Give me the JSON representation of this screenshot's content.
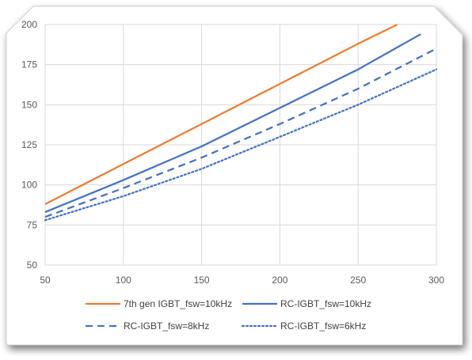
{
  "chart_data": {
    "type": "line",
    "title": "",
    "xlabel": "",
    "ylabel": "",
    "xlim": [
      50,
      300
    ],
    "ylim": [
      50,
      200
    ],
    "grid": true,
    "legend_position": "bottom",
    "x_ticks": [
      "50",
      "100",
      "150",
      "200",
      "250",
      "300"
    ],
    "y_ticks": [
      "50",
      "75",
      "100",
      "125",
      "150",
      "175",
      "200"
    ],
    "series": [
      {
        "name": "7th gen IGBT_fsw=10kHz",
        "color": "#ED7D31",
        "line_style": "solid",
        "x": [
          50,
          100,
          150,
          200,
          250,
          275
        ],
        "y": [
          88,
          113,
          138,
          163,
          188,
          200
        ]
      },
      {
        "name": "RC-IGBT_fsw=10kHz",
        "color": "#4472C4",
        "line_style": "solid",
        "x": [
          50,
          100,
          150,
          200,
          250,
          290
        ],
        "y": [
          83,
          103,
          124,
          148,
          172,
          194
        ]
      },
      {
        "name": "RC-IGBT_fsw=8kHz",
        "color": "#4472C4",
        "line_style": "dashed",
        "x": [
          50,
          100,
          150,
          200,
          250,
          300
        ],
        "y": [
          80,
          98,
          117,
          138,
          160,
          185
        ]
      },
      {
        "name": "RC-IGBT_fsw=6kHz",
        "color": "#4472C4",
        "line_style": "dotted",
        "x": [
          50,
          100,
          150,
          200,
          250,
          300
        ],
        "y": [
          78,
          93,
          110,
          130,
          150,
          172
        ]
      }
    ]
  },
  "colors": {
    "grid": "#D9D9D9",
    "axis_text": "#595959",
    "frame_border": "#D0D0D0",
    "shadow": "#9A9A9A"
  }
}
